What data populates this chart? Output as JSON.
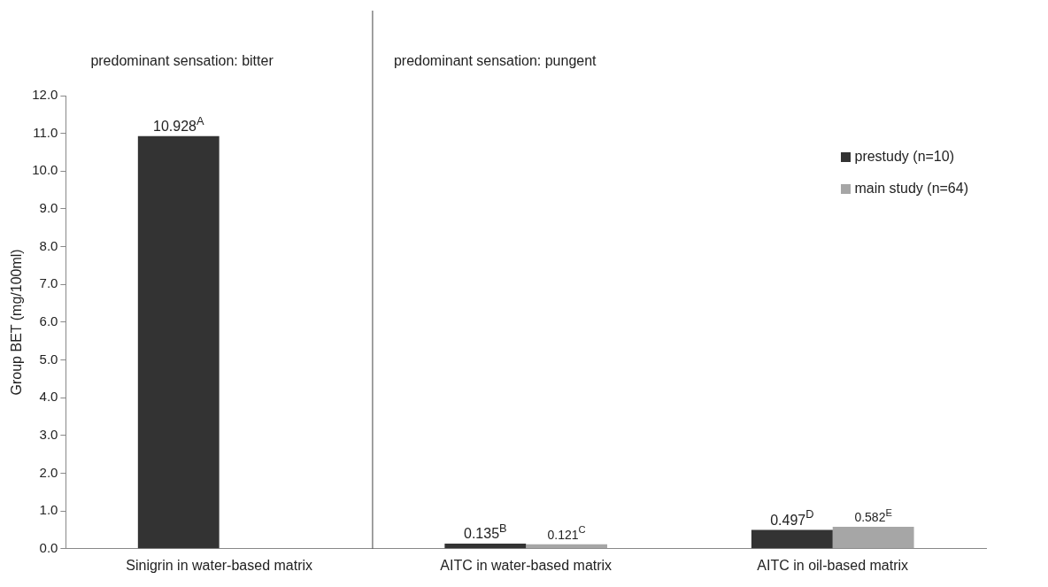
{
  "chart_data": {
    "type": "bar",
    "categories": [
      "Sinigrin in water-based matrix",
      "AITC in water-based matrix",
      "AITC in oil-based matrix"
    ],
    "ylabel": "Group BET (mg/100ml)",
    "series": [
      {
        "name": "prestudy (n=10)",
        "color": "#333333",
        "values": [
          10.928,
          0.135,
          0.497
        ],
        "value_labels": [
          "10.928$^{A}$",
          "0.135$^{B}$",
          "0.497$^{D}$"
        ]
      },
      {
        "name": "main study (n=64)",
        "color": "#a6a6a6",
        "values": [
          null,
          0.121,
          0.582
        ],
        "value_labels": [
          null,
          "0.121$^{C}$",
          "0.582$^{E}$"
        ]
      }
    ],
    "ylim": [
      0,
      12
    ],
    "yticks": [
      {
        "value": 0,
        "label": "0.0"
      },
      {
        "value": 1,
        "label": "1.0"
      },
      {
        "value": 2,
        "label": "2.0"
      },
      {
        "value": 3,
        "label": "3.0"
      },
      {
        "value": 4,
        "label": "4.0"
      },
      {
        "value": 5,
        "label": "5.0"
      },
      {
        "value": 6,
        "label": "6.0"
      },
      {
        "value": 7,
        "label": "7.0"
      },
      {
        "value": 8,
        "label": "8.0"
      },
      {
        "value": 9,
        "label": "9.0"
      },
      {
        "value": 10,
        "label": "10.0"
      },
      {
        "value": 11,
        "label": "11.0"
      },
      {
        "value": 12,
        "label": "12.0"
      }
    ],
    "annotations": [
      "predominant sensation: bitter",
      "predominant sensation: pungent"
    ],
    "legend": "top right",
    "grid": false
  }
}
